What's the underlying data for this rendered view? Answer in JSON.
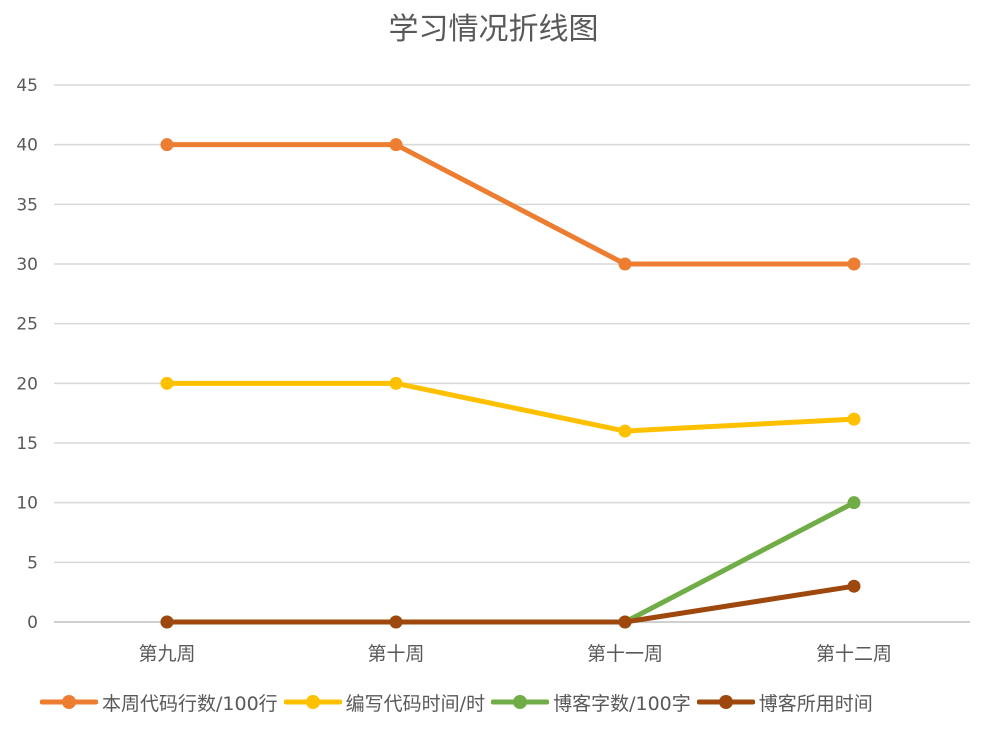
{
  "chart_data": {
    "type": "line",
    "title": "学习情况折线图",
    "xlabel": "",
    "ylabel": "",
    "categories": [
      "第九周",
      "第十周",
      "第十一周",
      "第十二周"
    ],
    "ylim": [
      0,
      45
    ],
    "yticks": [
      0,
      5,
      10,
      15,
      20,
      25,
      30,
      35,
      40,
      45
    ],
    "grid": true,
    "legend_position": "bottom",
    "series": [
      {
        "name": "本周代码行数/100行",
        "color": "#ED7D31",
        "values": [
          40,
          40,
          30,
          30
        ]
      },
      {
        "name": "编写代码时间/时",
        "color": "#FFC000",
        "values": [
          20,
          20,
          16,
          17
        ]
      },
      {
        "name": "博客字数/100字",
        "color": "#70AD47",
        "values": [
          0,
          0,
          0,
          10
        ]
      },
      {
        "name": "博客所用时间",
        "color": "#9E480E",
        "values": [
          0,
          0,
          0,
          3
        ]
      }
    ]
  }
}
